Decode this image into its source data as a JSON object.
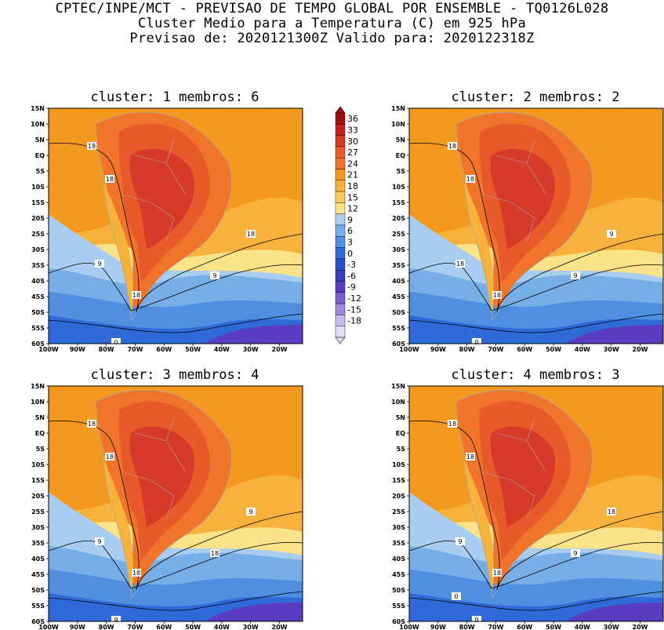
{
  "header": {
    "line1": "CPTEC/INPE/MCT - PREVISAO DE TEMPO GLOBAL POR ENSEMBLE - TQ0126L028",
    "line2": "Cluster Medio para a Temperatura (C) em 925 hPa",
    "line3": "Previsao de: 2020121300Z   Valido para: 2020122318Z"
  },
  "panels": [
    {
      "title": "cluster: 1   membros: 6",
      "contour_labels": [
        "18",
        "18",
        "18",
        "9",
        "18",
        "9",
        "0"
      ]
    },
    {
      "title": "cluster: 2   membros: 2",
      "contour_labels": [
        "18",
        "18",
        "18",
        "18",
        "9",
        "9",
        "0"
      ]
    },
    {
      "title": "cluster: 3   membros: 4",
      "contour_labels": [
        "18",
        "18",
        "18",
        "9",
        "9",
        "18",
        "9"
      ]
    },
    {
      "title": "cluster: 4   membros: 3",
      "contour_labels": [
        "18",
        "18",
        "18",
        "9",
        "18",
        "9",
        "0",
        "0"
      ]
    }
  ],
  "lat_ticks": [
    "15N",
    "10N",
    "5N",
    "EQ",
    "5S",
    "10S",
    "15S",
    "20S",
    "25S",
    "30S",
    "35S",
    "40S",
    "45S",
    "50S",
    "55S",
    "60S"
  ],
  "lon_ticks": [
    "100W",
    "90W",
    "80W",
    "70W",
    "60W",
    "50W",
    "40W",
    "30W",
    "20W"
  ],
  "colorbar": {
    "labels": [
      "36",
      "33",
      "30",
      "27",
      "24",
      "21",
      "18",
      "15",
      "12",
      "9",
      "6",
      "3",
      "0",
      "-3",
      "-6",
      "-9",
      "-12",
      "-15",
      "-18"
    ],
    "colors": [
      "#a01010",
      "#c42020",
      "#d83a2a",
      "#e85a2a",
      "#f0742a",
      "#f5981e",
      "#f6b23a",
      "#f8cb5c",
      "#fbe38a",
      "#a8cdf0",
      "#78aee8",
      "#4e8fe0",
      "#2e6ad8",
      "#2850c8",
      "#3a3cbc",
      "#5a3cc0",
      "#7a5ccc",
      "#a08adc",
      "#c8bcec",
      "#e2dcf4"
    ]
  }
}
